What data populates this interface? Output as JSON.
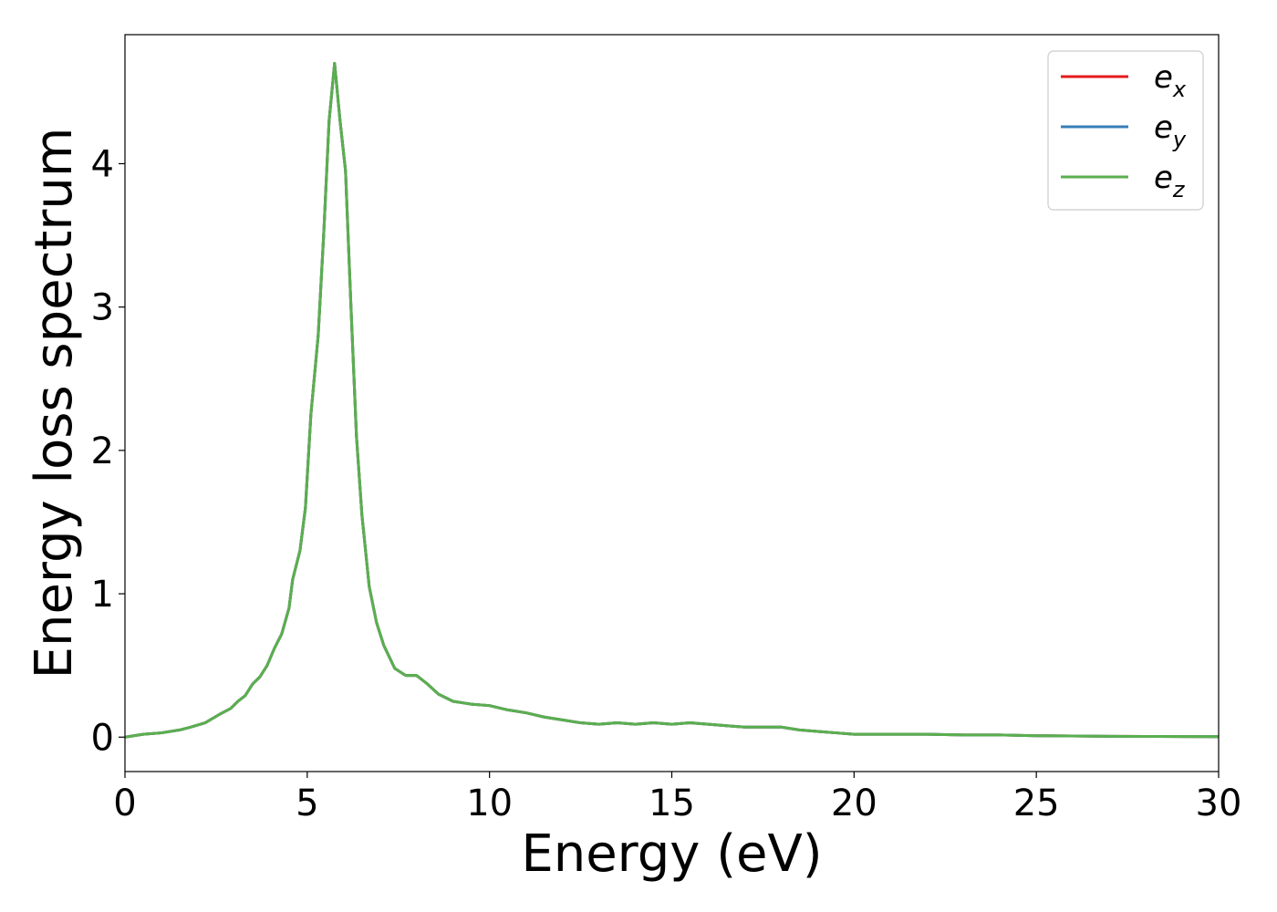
{
  "chart_data": {
    "type": "line",
    "title": "",
    "xlabel": "Energy (eV)",
    "ylabel": "Energy loss spectrum",
    "xlim": [
      0,
      30
    ],
    "ylim": [
      -0.24,
      4.9
    ],
    "xticks": [
      0,
      5,
      10,
      15,
      20,
      25,
      30
    ],
    "yticks": [
      0,
      1,
      2,
      3,
      4
    ],
    "grid": false,
    "legend_position": "top-right",
    "x": [
      0,
      0.5,
      1.0,
      1.5,
      1.8,
      2.2,
      2.6,
      2.9,
      3.1,
      3.3,
      3.5,
      3.7,
      3.9,
      4.1,
      4.3,
      4.5,
      4.6,
      4.8,
      4.95,
      5.1,
      5.3,
      5.45,
      5.6,
      5.75,
      5.9,
      6.05,
      6.2,
      6.35,
      6.5,
      6.7,
      6.9,
      7.1,
      7.4,
      7.7,
      8.0,
      8.3,
      8.6,
      9.0,
      9.5,
      10.0,
      10.5,
      11.0,
      11.5,
      12.0,
      12.5,
      13.0,
      13.5,
      14.0,
      14.5,
      15.0,
      15.5,
      16.0,
      16.5,
      17.0,
      17.5,
      18.0,
      18.5,
      19.0,
      19.5,
      20.0,
      21.0,
      22.0,
      23.0,
      24.0,
      25.0,
      26.0,
      27.0,
      28.0,
      29.0,
      30.0
    ],
    "series": [
      {
        "name": "e_x",
        "label_base": "e",
        "label_sub": "x",
        "color": "#e41a1c",
        "values": [
          0.0,
          0.02,
          0.03,
          0.05,
          0.07,
          0.1,
          0.16,
          0.2,
          0.25,
          0.29,
          0.37,
          0.42,
          0.5,
          0.62,
          0.72,
          0.9,
          1.1,
          1.3,
          1.6,
          2.25,
          2.8,
          3.5,
          4.3,
          4.7,
          4.3,
          3.95,
          3.0,
          2.1,
          1.55,
          1.05,
          0.8,
          0.64,
          0.48,
          0.43,
          0.43,
          0.37,
          0.3,
          0.25,
          0.23,
          0.22,
          0.19,
          0.17,
          0.14,
          0.12,
          0.1,
          0.09,
          0.1,
          0.09,
          0.1,
          0.09,
          0.1,
          0.09,
          0.08,
          0.07,
          0.07,
          0.07,
          0.05,
          0.04,
          0.03,
          0.02,
          0.02,
          0.02,
          0.015,
          0.015,
          0.01,
          0.008,
          0.006,
          0.005,
          0.004,
          0.003
        ]
      },
      {
        "name": "e_y",
        "label_base": "e",
        "label_sub": "y",
        "color": "#377eb8",
        "values": [
          0.0,
          0.02,
          0.03,
          0.05,
          0.07,
          0.1,
          0.16,
          0.2,
          0.25,
          0.29,
          0.37,
          0.42,
          0.5,
          0.62,
          0.72,
          0.9,
          1.1,
          1.3,
          1.6,
          2.25,
          2.8,
          3.5,
          4.3,
          4.7,
          4.3,
          3.95,
          3.0,
          2.1,
          1.55,
          1.05,
          0.8,
          0.64,
          0.48,
          0.43,
          0.43,
          0.37,
          0.3,
          0.25,
          0.23,
          0.22,
          0.19,
          0.17,
          0.14,
          0.12,
          0.1,
          0.09,
          0.1,
          0.09,
          0.1,
          0.09,
          0.1,
          0.09,
          0.08,
          0.07,
          0.07,
          0.07,
          0.05,
          0.04,
          0.03,
          0.02,
          0.02,
          0.02,
          0.015,
          0.015,
          0.01,
          0.008,
          0.006,
          0.005,
          0.004,
          0.003
        ]
      },
      {
        "name": "e_z",
        "label_base": "e",
        "label_sub": "z",
        "color": "#5aaf4f",
        "values": [
          0.0,
          0.02,
          0.03,
          0.05,
          0.07,
          0.1,
          0.16,
          0.2,
          0.25,
          0.29,
          0.37,
          0.42,
          0.5,
          0.62,
          0.72,
          0.9,
          1.1,
          1.3,
          1.6,
          2.25,
          2.8,
          3.5,
          4.3,
          4.7,
          4.3,
          3.95,
          3.0,
          2.1,
          1.55,
          1.05,
          0.8,
          0.64,
          0.48,
          0.43,
          0.43,
          0.37,
          0.3,
          0.25,
          0.23,
          0.22,
          0.19,
          0.17,
          0.14,
          0.12,
          0.1,
          0.09,
          0.1,
          0.09,
          0.1,
          0.09,
          0.1,
          0.09,
          0.08,
          0.07,
          0.07,
          0.07,
          0.05,
          0.04,
          0.03,
          0.02,
          0.02,
          0.02,
          0.015,
          0.015,
          0.01,
          0.008,
          0.006,
          0.005,
          0.004,
          0.003
        ]
      }
    ]
  }
}
